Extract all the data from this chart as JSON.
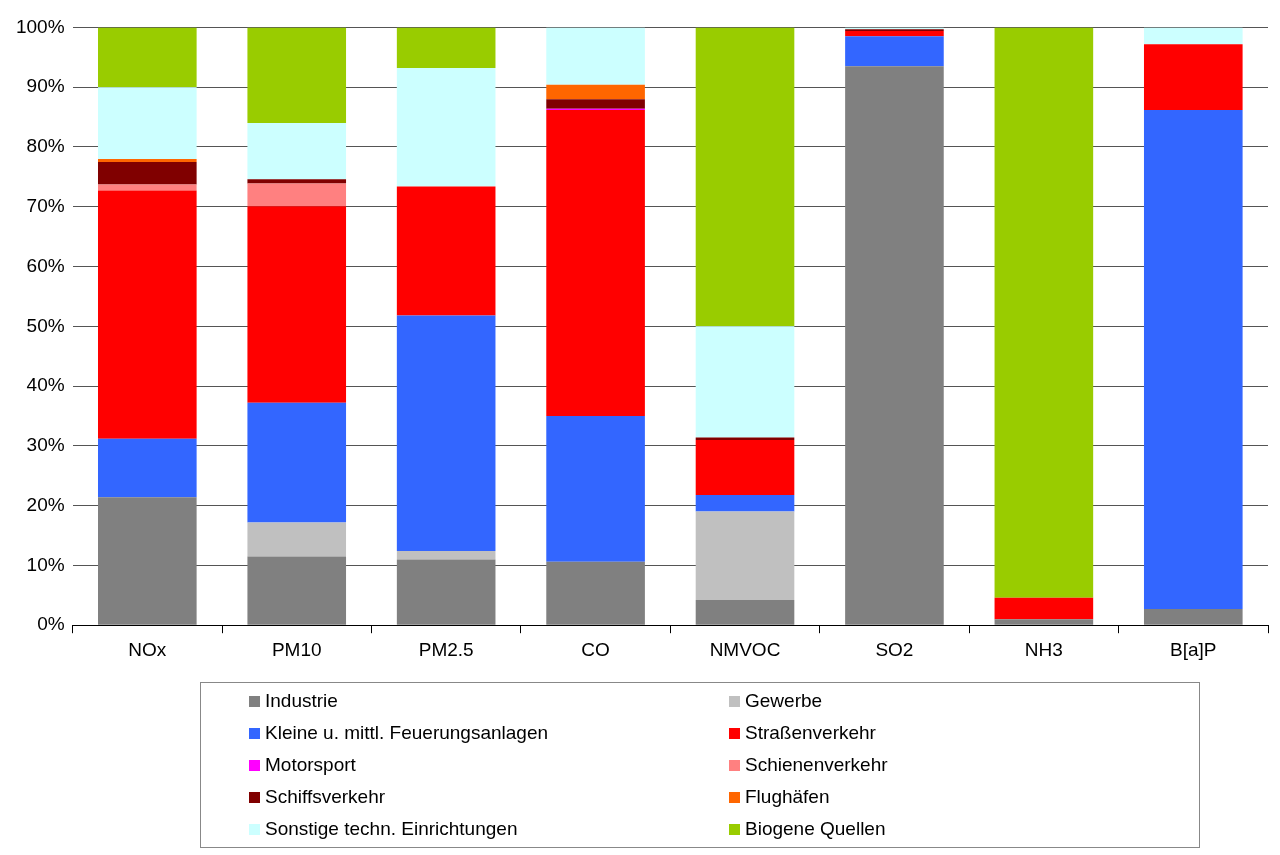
{
  "chart_data": {
    "type": "bar",
    "stacked": true,
    "categories": [
      "NOx",
      "PM10",
      "PM2.5",
      "CO",
      "NMVOC",
      "SO2",
      "NH3",
      "B[a]P"
    ],
    "series": [
      {
        "name": "Industrie",
        "color": "#808080",
        "values": [
          21.4,
          11.5,
          11,
          10.6,
          4.2,
          93.5,
          1,
          2.7
        ]
      },
      {
        "name": "Gewerbe",
        "color": "#c0c0c0",
        "values": [
          0,
          5.7,
          1.4,
          0,
          14.8,
          0,
          0,
          0
        ]
      },
      {
        "name": "Kleine u. mittl. Feuerungsanlagen",
        "color": "#3366ff",
        "values": [
          9.8,
          20,
          39.4,
          24.4,
          2.8,
          5,
          0,
          83.5
        ]
      },
      {
        "name": "Straßenverkehr",
        "color": "#ff0000",
        "values": [
          41.5,
          32.9,
          21.6,
          51.2,
          9.2,
          0.9,
          3.6,
          11
        ]
      },
      {
        "name": "Motorsport",
        "color": "#ff00ff",
        "values": [
          0,
          0,
          0,
          0.2,
          0,
          0,
          0,
          0
        ]
      },
      {
        "name": "Schienenverkehr",
        "color": "#ff8080",
        "values": [
          1,
          3.8,
          0,
          0,
          0,
          0,
          0,
          0
        ]
      },
      {
        "name": "Schiffsverkehr",
        "color": "#800000",
        "values": [
          3.8,
          0.7,
          0,
          1.6,
          0.4,
          0.3,
          0,
          0
        ]
      },
      {
        "name": "Flughäfen",
        "color": "#ff6600",
        "values": [
          0.5,
          0,
          0,
          2.4,
          0,
          0,
          0,
          0
        ]
      },
      {
        "name": "Sonstige techn. Einrichtungen",
        "color": "#ccffff",
        "values": [
          12,
          9.4,
          19.8,
          9.6,
          18.6,
          0.3,
          0,
          2.8
        ]
      },
      {
        "name": "Biogene Quellen",
        "color": "#99cc00",
        "values": [
          10,
          16,
          6.8,
          0,
          50,
          0,
          95.4,
          0
        ]
      }
    ],
    "ylim": [
      0,
      100
    ],
    "yticks": [
      {
        "value": 0,
        "label": "0%"
      },
      {
        "value": 10,
        "label": "10%"
      },
      {
        "value": 20,
        "label": "20%"
      },
      {
        "value": 30,
        "label": "30%"
      },
      {
        "value": 40,
        "label": "40%"
      },
      {
        "value": 50,
        "label": "50%"
      },
      {
        "value": 60,
        "label": "60%"
      },
      {
        "value": 70,
        "label": "70%"
      },
      {
        "value": 80,
        "label": "80%"
      },
      {
        "value": 90,
        "label": "90%"
      },
      {
        "value": 100,
        "label": "100%"
      }
    ],
    "grid": "y",
    "legend": "bottom"
  }
}
